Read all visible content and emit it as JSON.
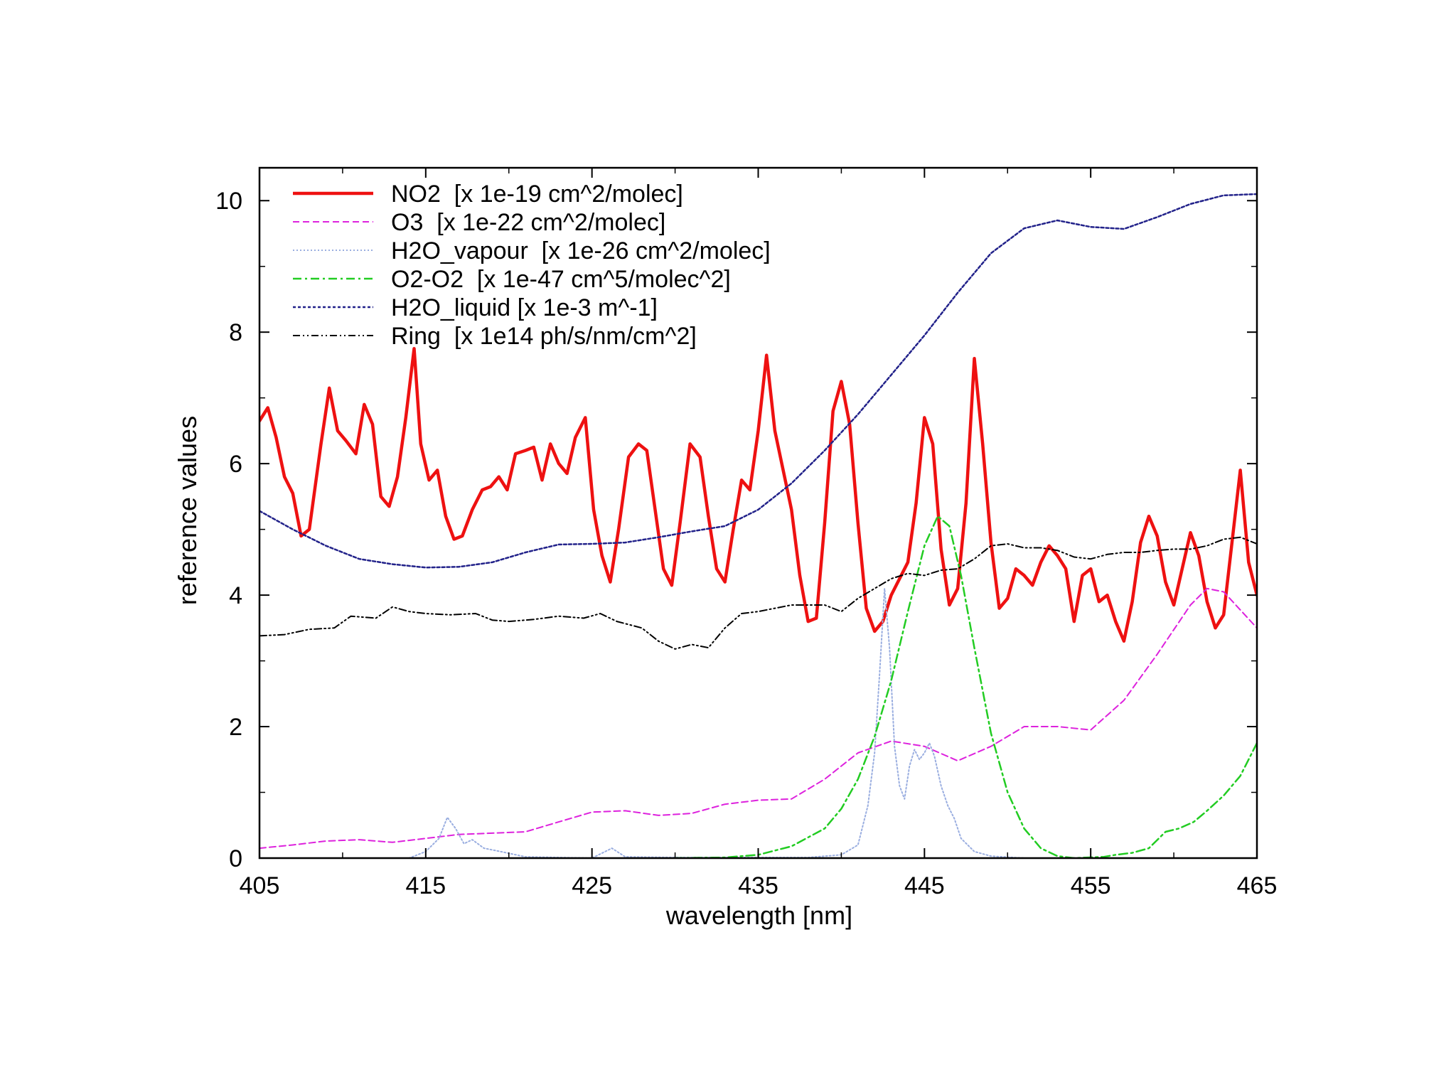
{
  "chart_data": {
    "type": "line",
    "xlabel": "wavelength [nm]",
    "ylabel": "reference values",
    "xlim": [
      405,
      465
    ],
    "ylim": [
      0,
      10.5
    ],
    "x_ticks": [
      405,
      415,
      425,
      435,
      445,
      455,
      465
    ],
    "y_ticks": [
      0,
      2,
      4,
      6,
      8,
      10
    ],
    "grid": false,
    "legend_position": "top-left inside",
    "series": [
      {
        "name": "NO2  [x 1e-19 cm^2/molec]",
        "color": "#ee1111",
        "style": "solid-thick",
        "points": [
          [
            405,
            6.65
          ],
          [
            405.5,
            6.85
          ],
          [
            406,
            6.4
          ],
          [
            406.5,
            5.8
          ],
          [
            407,
            5.55
          ],
          [
            407.5,
            4.9
          ],
          [
            408,
            5.0
          ],
          [
            408.7,
            6.3
          ],
          [
            409.2,
            7.15
          ],
          [
            409.7,
            6.5
          ],
          [
            410.2,
            6.35
          ],
          [
            410.8,
            6.15
          ],
          [
            411.3,
            6.9
          ],
          [
            411.8,
            6.6
          ],
          [
            412.3,
            5.5
          ],
          [
            412.8,
            5.35
          ],
          [
            413.3,
            5.8
          ],
          [
            413.8,
            6.7
          ],
          [
            414.3,
            7.75
          ],
          [
            414.7,
            6.3
          ],
          [
            415.2,
            5.75
          ],
          [
            415.7,
            5.9
          ],
          [
            416.2,
            5.2
          ],
          [
            416.7,
            4.85
          ],
          [
            417.2,
            4.9
          ],
          [
            417.8,
            5.3
          ],
          [
            418.4,
            5.6
          ],
          [
            418.9,
            5.65
          ],
          [
            419.4,
            5.8
          ],
          [
            419.9,
            5.6
          ],
          [
            420.4,
            6.15
          ],
          [
            421.0,
            6.2
          ],
          [
            421.5,
            6.25
          ],
          [
            422.0,
            5.75
          ],
          [
            422.5,
            6.3
          ],
          [
            423.0,
            6.0
          ],
          [
            423.5,
            5.85
          ],
          [
            424.0,
            6.4
          ],
          [
            424.6,
            6.7
          ],
          [
            425.1,
            5.3
          ],
          [
            425.6,
            4.6
          ],
          [
            426.1,
            4.2
          ],
          [
            426.6,
            5.0
          ],
          [
            427.2,
            6.1
          ],
          [
            427.8,
            6.3
          ],
          [
            428.3,
            6.2
          ],
          [
            428.8,
            5.3
          ],
          [
            429.3,
            4.4
          ],
          [
            429.8,
            4.15
          ],
          [
            430.3,
            5.1
          ],
          [
            430.9,
            6.3
          ],
          [
            431.5,
            6.1
          ],
          [
            432.0,
            5.2
          ],
          [
            432.5,
            4.4
          ],
          [
            433.0,
            4.2
          ],
          [
            433.5,
            5.0
          ],
          [
            434.0,
            5.75
          ],
          [
            434.5,
            5.6
          ],
          [
            435.0,
            6.5
          ],
          [
            435.5,
            7.65
          ],
          [
            436.0,
            6.5
          ],
          [
            436.5,
            5.9
          ],
          [
            437.0,
            5.3
          ],
          [
            437.5,
            4.3
          ],
          [
            438.0,
            3.6
          ],
          [
            438.5,
            3.65
          ],
          [
            439.0,
            5.1
          ],
          [
            439.5,
            6.8
          ],
          [
            440.0,
            7.25
          ],
          [
            440.5,
            6.6
          ],
          [
            441.0,
            5.1
          ],
          [
            441.5,
            3.8
          ],
          [
            442.0,
            3.45
          ],
          [
            442.5,
            3.6
          ],
          [
            443.0,
            4.0
          ],
          [
            443.5,
            4.25
          ],
          [
            444.0,
            4.5
          ],
          [
            444.5,
            5.4
          ],
          [
            445.0,
            6.7
          ],
          [
            445.5,
            6.3
          ],
          [
            446.0,
            4.7
          ],
          [
            446.5,
            3.85
          ],
          [
            447.0,
            4.1
          ],
          [
            447.5,
            5.4
          ],
          [
            448.0,
            7.6
          ],
          [
            448.5,
            6.3
          ],
          [
            449.0,
            4.8
          ],
          [
            449.5,
            3.8
          ],
          [
            450.0,
            3.95
          ],
          [
            450.5,
            4.4
          ],
          [
            451.0,
            4.3
          ],
          [
            451.5,
            4.15
          ],
          [
            452.0,
            4.5
          ],
          [
            452.5,
            4.75
          ],
          [
            453.0,
            4.6
          ],
          [
            453.5,
            4.4
          ],
          [
            454.0,
            3.6
          ],
          [
            454.5,
            4.3
          ],
          [
            455.0,
            4.4
          ],
          [
            455.5,
            3.9
          ],
          [
            456.0,
            4.0
          ],
          [
            456.5,
            3.6
          ],
          [
            457.0,
            3.3
          ],
          [
            457.5,
            3.9
          ],
          [
            458.0,
            4.8
          ],
          [
            458.5,
            5.2
          ],
          [
            459.0,
            4.9
          ],
          [
            459.5,
            4.2
          ],
          [
            460.0,
            3.85
          ],
          [
            460.5,
            4.4
          ],
          [
            461.0,
            4.95
          ],
          [
            461.5,
            4.6
          ],
          [
            462.0,
            3.9
          ],
          [
            462.5,
            3.5
          ],
          [
            463.0,
            3.7
          ],
          [
            463.5,
            4.8
          ],
          [
            464.0,
            5.9
          ],
          [
            464.5,
            4.5
          ],
          [
            465,
            4.0
          ]
        ]
      },
      {
        "name": "O3  [x 1e-22 cm^2/molec]",
        "color": "#dd22dd",
        "style": "dashed",
        "points": [
          [
            405,
            0.15
          ],
          [
            407,
            0.2
          ],
          [
            409,
            0.26
          ],
          [
            411,
            0.28
          ],
          [
            413,
            0.24
          ],
          [
            415,
            0.3
          ],
          [
            417,
            0.36
          ],
          [
            419,
            0.38
          ],
          [
            421,
            0.4
          ],
          [
            423,
            0.55
          ],
          [
            425,
            0.7
          ],
          [
            427,
            0.72
          ],
          [
            429,
            0.65
          ],
          [
            431,
            0.68
          ],
          [
            433,
            0.82
          ],
          [
            435,
            0.88
          ],
          [
            437,
            0.9
          ],
          [
            439,
            1.2
          ],
          [
            441,
            1.6
          ],
          [
            443,
            1.78
          ],
          [
            445,
            1.7
          ],
          [
            447,
            1.48
          ],
          [
            449,
            1.7
          ],
          [
            451,
            2.0
          ],
          [
            453,
            2.0
          ],
          [
            455,
            1.95
          ],
          [
            457,
            2.4
          ],
          [
            459,
            3.1
          ],
          [
            461,
            3.85
          ],
          [
            462,
            4.1
          ],
          [
            463,
            4.05
          ],
          [
            465,
            3.5
          ]
        ]
      },
      {
        "name": "H2O_vapour  [x 1e-26 cm^2/molec]",
        "color": "#9aaee0",
        "style": "dotted",
        "points": [
          [
            405,
            0
          ],
          [
            414,
            0
          ],
          [
            415,
            0.1
          ],
          [
            415.8,
            0.3
          ],
          [
            416.3,
            0.62
          ],
          [
            416.8,
            0.45
          ],
          [
            417.3,
            0.22
          ],
          [
            417.8,
            0.28
          ],
          [
            418.5,
            0.15
          ],
          [
            419.5,
            0.1
          ],
          [
            421,
            0.02
          ],
          [
            425,
            0
          ],
          [
            426.2,
            0.15
          ],
          [
            427,
            0.02
          ],
          [
            430,
            0.01
          ],
          [
            438,
            0.01
          ],
          [
            440,
            0.05
          ],
          [
            441,
            0.2
          ],
          [
            441.6,
            0.8
          ],
          [
            442.0,
            1.6
          ],
          [
            442.3,
            2.8
          ],
          [
            442.6,
            4.1
          ],
          [
            442.9,
            3.2
          ],
          [
            443.2,
            1.7
          ],
          [
            443.5,
            1.1
          ],
          [
            443.8,
            0.9
          ],
          [
            444.1,
            1.4
          ],
          [
            444.4,
            1.65
          ],
          [
            444.7,
            1.5
          ],
          [
            445.0,
            1.6
          ],
          [
            445.3,
            1.75
          ],
          [
            445.6,
            1.55
          ],
          [
            446.0,
            1.1
          ],
          [
            446.4,
            0.8
          ],
          [
            446.8,
            0.6
          ],
          [
            447.2,
            0.3
          ],
          [
            448,
            0.1
          ],
          [
            449,
            0.03
          ],
          [
            451,
            0
          ],
          [
            465,
            0
          ]
        ]
      },
      {
        "name": "O2-O2  [x 1e-47 cm^5/molec^2]",
        "color": "#22cc22",
        "style": "dash-dot",
        "points": [
          [
            430,
            0
          ],
          [
            433,
            0.01
          ],
          [
            435,
            0.05
          ],
          [
            437,
            0.18
          ],
          [
            439,
            0.45
          ],
          [
            440,
            0.75
          ],
          [
            441,
            1.2
          ],
          [
            442,
            1.85
          ],
          [
            443,
            2.7
          ],
          [
            444,
            3.75
          ],
          [
            445,
            4.75
          ],
          [
            445.8,
            5.2
          ],
          [
            446.5,
            5.05
          ],
          [
            447.2,
            4.3
          ],
          [
            448,
            3.2
          ],
          [
            449,
            1.9
          ],
          [
            450,
            1.0
          ],
          [
            451,
            0.45
          ],
          [
            452,
            0.15
          ],
          [
            453,
            0.03
          ],
          [
            454,
            0
          ],
          [
            455.8,
            0.02
          ],
          [
            456.5,
            0.05
          ],
          [
            457.5,
            0.08
          ],
          [
            458.5,
            0.15
          ],
          [
            459.5,
            0.4
          ],
          [
            460.3,
            0.45
          ],
          [
            461.2,
            0.55
          ],
          [
            462,
            0.72
          ],
          [
            463,
            0.95
          ],
          [
            464,
            1.25
          ],
          [
            465,
            1.75
          ]
        ]
      },
      {
        "name": "H2O_liquid [x 1e-3 m^-1]",
        "color": "#22228a",
        "style": "dotted-dense",
        "points": [
          [
            405,
            5.28
          ],
          [
            407,
            5.0
          ],
          [
            409,
            4.75
          ],
          [
            411,
            4.55
          ],
          [
            413,
            4.47
          ],
          [
            415,
            4.42
          ],
          [
            417,
            4.43
          ],
          [
            419,
            4.5
          ],
          [
            421,
            4.65
          ],
          [
            423,
            4.77
          ],
          [
            425,
            4.78
          ],
          [
            427,
            4.8
          ],
          [
            429,
            4.88
          ],
          [
            431,
            4.97
          ],
          [
            433,
            5.05
          ],
          [
            435,
            5.3
          ],
          [
            437,
            5.7
          ],
          [
            439,
            6.2
          ],
          [
            441,
            6.75
          ],
          [
            443,
            7.35
          ],
          [
            445,
            7.95
          ],
          [
            447,
            8.6
          ],
          [
            449,
            9.2
          ],
          [
            451,
            9.58
          ],
          [
            453,
            9.7
          ],
          [
            455,
            9.6
          ],
          [
            457,
            9.57
          ],
          [
            459,
            9.75
          ],
          [
            461,
            9.95
          ],
          [
            463,
            10.08
          ],
          [
            465,
            10.1
          ]
        ]
      },
      {
        "name": "Ring  [x 1e14 ph/s/nm/cm^2]",
        "color": "#000000",
        "style": "dash-dot-dot",
        "points": [
          [
            405,
            3.38
          ],
          [
            406.5,
            3.4
          ],
          [
            408,
            3.48
          ],
          [
            409.5,
            3.5
          ],
          [
            410.5,
            3.68
          ],
          [
            412,
            3.65
          ],
          [
            413,
            3.82
          ],
          [
            414,
            3.75
          ],
          [
            415,
            3.72
          ],
          [
            416.5,
            3.7
          ],
          [
            418,
            3.72
          ],
          [
            419,
            3.62
          ],
          [
            420,
            3.6
          ],
          [
            421.5,
            3.63
          ],
          [
            423,
            3.68
          ],
          [
            424.5,
            3.65
          ],
          [
            425.5,
            3.72
          ],
          [
            426.5,
            3.6
          ],
          [
            428,
            3.5
          ],
          [
            429,
            3.3
          ],
          [
            430,
            3.18
          ],
          [
            431,
            3.25
          ],
          [
            432,
            3.2
          ],
          [
            433,
            3.5
          ],
          [
            434,
            3.72
          ],
          [
            435,
            3.75
          ],
          [
            436,
            3.8
          ],
          [
            437,
            3.85
          ],
          [
            438,
            3.85
          ],
          [
            439,
            3.85
          ],
          [
            440,
            3.75
          ],
          [
            441,
            3.95
          ],
          [
            442,
            4.1
          ],
          [
            443,
            4.25
          ],
          [
            444,
            4.33
          ],
          [
            445,
            4.3
          ],
          [
            446,
            4.38
          ],
          [
            447,
            4.4
          ],
          [
            448,
            4.55
          ],
          [
            449,
            4.75
          ],
          [
            450,
            4.78
          ],
          [
            451,
            4.72
          ],
          [
            452,
            4.72
          ],
          [
            453,
            4.68
          ],
          [
            454,
            4.58
          ],
          [
            455,
            4.55
          ],
          [
            456,
            4.62
          ],
          [
            457,
            4.65
          ],
          [
            458,
            4.65
          ],
          [
            459,
            4.68
          ],
          [
            460,
            4.7
          ],
          [
            461,
            4.7
          ],
          [
            462,
            4.75
          ],
          [
            463,
            4.85
          ],
          [
            464,
            4.88
          ],
          [
            465,
            4.78
          ]
        ]
      }
    ]
  }
}
